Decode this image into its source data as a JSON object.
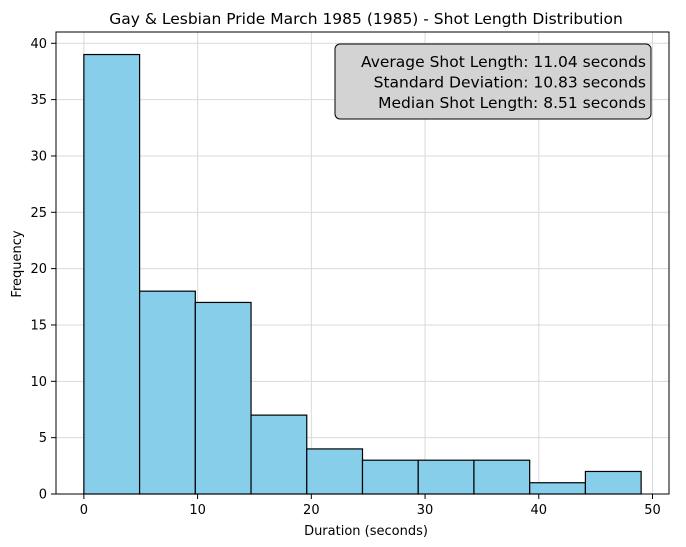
{
  "chart_data": {
    "type": "bar",
    "title": "Gay & Lesbian Pride March 1985 (1985) - Shot Length Distribution",
    "xlabel": "Duration (seconds)",
    "ylabel": "Frequency",
    "bin_edges": [
      0,
      4.9,
      9.8,
      14.7,
      19.6,
      24.5,
      29.4,
      34.3,
      39.2,
      44.1,
      49.0
    ],
    "values": [
      39,
      18,
      17,
      7,
      4,
      3,
      3,
      3,
      1,
      2
    ],
    "xlim": [
      -2.45,
      51.45
    ],
    "ylim": [
      0,
      41
    ],
    "xticks": [
      0,
      10,
      20,
      30,
      40,
      50
    ],
    "yticks": [
      0,
      5,
      10,
      15,
      20,
      25,
      30,
      35,
      40
    ],
    "grid": true,
    "bar_color": "#87ceeb",
    "edge_color": "#000000",
    "annotation": {
      "placement": "top-right",
      "lines": [
        "Average Shot Length: 11.04 seconds",
        "Standard Deviation: 10.83 seconds",
        "Median Shot Length: 8.51 seconds"
      ],
      "background": "#d3d3d3"
    }
  }
}
